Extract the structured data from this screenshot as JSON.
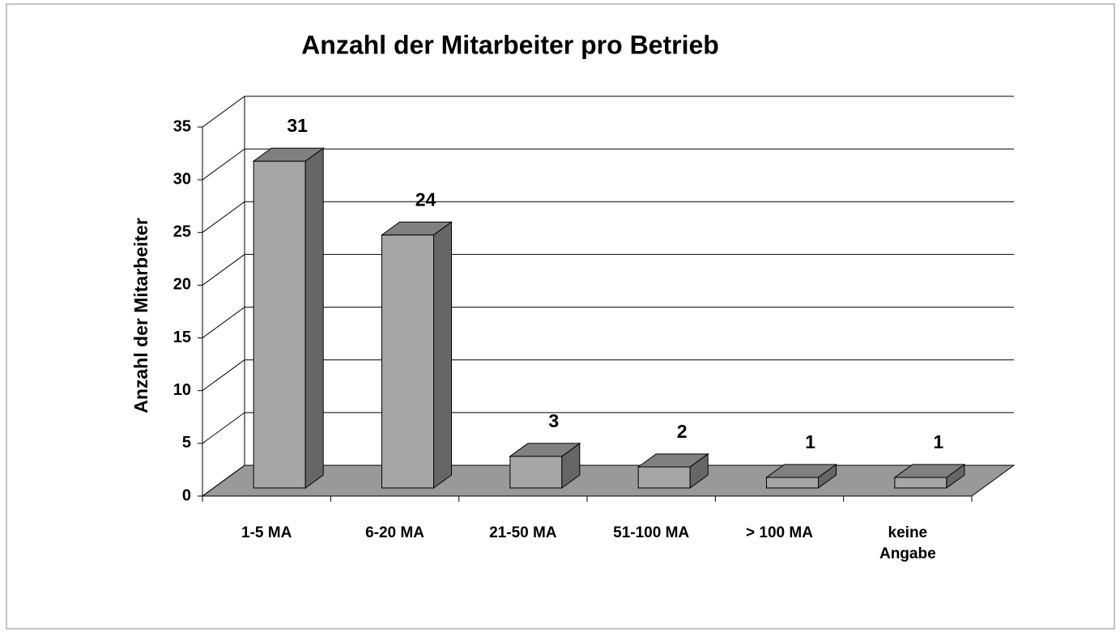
{
  "chart_data": {
    "type": "bar3d",
    "title": "Anzahl der Mitarbeiter pro Betrieb",
    "y_label": "Anzahl der Mitarbeiter",
    "categories": [
      "1-5 MA",
      "6-20 MA",
      "21-50 MA",
      "51-100 MA",
      "> 100 MA",
      "keine Angabe"
    ],
    "values": [
      31,
      24,
      3,
      2,
      1,
      1
    ],
    "color": "#a6a6a6",
    "ylim": [
      0,
      35
    ],
    "yticks": [
      0,
      5,
      10,
      15,
      20,
      25,
      30,
      35
    ],
    "grid": true
  }
}
